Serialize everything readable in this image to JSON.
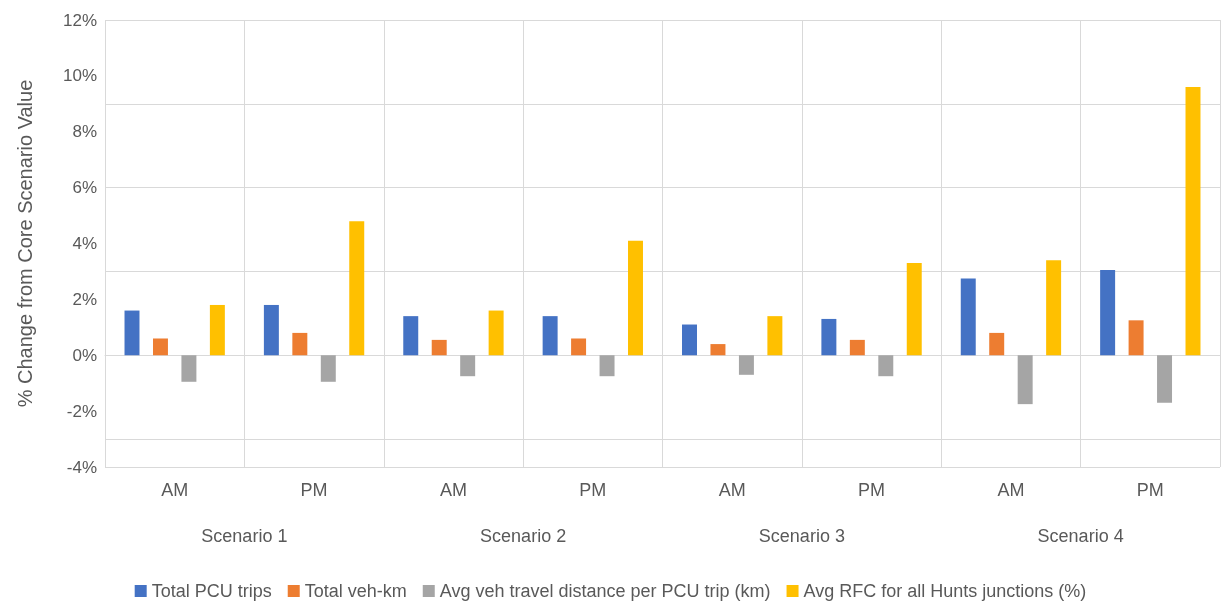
{
  "chart_data": {
    "type": "bar",
    "ylabel": "% Change from Core Scenario Value",
    "categories": [
      "AM",
      "PM",
      "AM",
      "PM",
      "AM",
      "PM",
      "AM",
      "PM"
    ],
    "annotations": [
      "Scenario 1",
      "Scenario 2",
      "Scenario 3",
      "Scenario 4"
    ],
    "series": [
      {
        "name": "Total PCU trips",
        "color": "#4472c4",
        "values": [
          1.6,
          1.8,
          1.4,
          1.4,
          1.1,
          1.3,
          2.75,
          3.05
        ]
      },
      {
        "name": "Total veh-km",
        "color": "#ed7d31",
        "values": [
          0.6,
          0.8,
          0.55,
          0.6,
          0.4,
          0.55,
          0.8,
          1.25
        ]
      },
      {
        "name": "Avg veh travel distance per PCU trip (km)",
        "color": "#a5a5a5",
        "values": [
          -0.95,
          -0.95,
          -0.75,
          -0.75,
          -0.7,
          -0.75,
          -1.75,
          -1.7
        ]
      },
      {
        "name": "Avg RFC for all Hunts junctions (%)",
        "color": "#ffc000",
        "values": [
          1.8,
          4.8,
          1.6,
          4.1,
          1.4,
          3.3,
          3.4,
          9.6
        ]
      }
    ],
    "ylim": [
      -4,
      12
    ],
    "yticks": [
      {
        "value": -4,
        "label": "-4%"
      },
      {
        "value": -2,
        "label": "-2%"
      },
      {
        "value": 0,
        "label": "0%"
      },
      {
        "value": 2,
        "label": "2%"
      },
      {
        "value": 4,
        "label": "4%"
      },
      {
        "value": 6,
        "label": "6%"
      },
      {
        "value": 8,
        "label": "8%"
      },
      {
        "value": 10,
        "label": "10%"
      },
      {
        "value": 12,
        "label": "12%"
      }
    ],
    "grid": true,
    "legend": "bottom"
  }
}
